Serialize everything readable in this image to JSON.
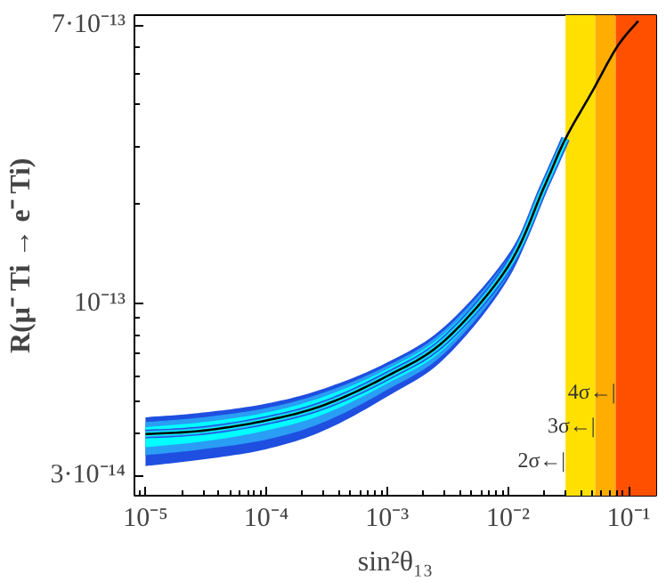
{
  "chart_data": {
    "type": "line",
    "xlabel": "sin²θ₁₃",
    "ylabel": "R(μ⁻ Ti → e⁻ Ti)",
    "log": "xy",
    "grid": false,
    "xlim": [
      8.1e-06,
      0.169
    ],
    "ylim": [
      2.6e-14,
      7.5e-13
    ],
    "xticks": [
      {
        "value": 1e-05,
        "label": "10⁻⁵"
      },
      {
        "value": 0.0001,
        "label": "10⁻⁴"
      },
      {
        "value": 0.001,
        "label": "10⁻³"
      },
      {
        "value": 0.01,
        "label": "10⁻²"
      },
      {
        "value": 0.1,
        "label": "10⁻¹"
      }
    ],
    "yticks": [
      {
        "value": 3e-14,
        "label": "3·10⁻¹⁴"
      },
      {
        "value": 1e-13,
        "label": "10⁻¹³"
      },
      {
        "value": 7e-13,
        "label": "7·10⁻¹³"
      }
    ],
    "series": [
      {
        "type": "line",
        "color": "#1f4fe0",
        "x": [
          1e-05,
          3e-05,
          0.0001,
          0.0003,
          0.001,
          0.003,
          0.01,
          0.02,
          0.03
        ],
        "values": [
          4e-14,
          4.1e-14,
          4.4e-14,
          4.9e-14,
          6e-14,
          7.7e-14,
          1.29e-13,
          2.26e-13,
          3.16e-13
        ],
        "lower": [
          3.2e-14,
          3.35e-14,
          3.6e-14,
          4.1e-14,
          5.2e-14,
          6.8e-14,
          1.18e-13,
          2.15e-13,
          3.1e-13
        ],
        "upper": [
          4.5e-14,
          4.65e-14,
          4.95e-14,
          5.5e-14,
          6.6e-14,
          8.5e-14,
          1.4e-13,
          2.35e-13,
          3.2e-13
        ]
      },
      {
        "type": "line",
        "color": "#2a9df4",
        "x": [
          1e-05,
          3e-05,
          0.0001,
          0.0003,
          0.001,
          0.003,
          0.01,
          0.02,
          0.03
        ],
        "values": [
          4e-14,
          4.1e-14,
          4.4e-14,
          4.9e-14,
          6e-14,
          7.7e-14,
          1.29e-13,
          2.26e-13,
          3.16e-13
        ],
        "lower": [
          3.45e-14,
          3.6e-14,
          3.85e-14,
          4.35e-14,
          5.45e-14,
          7.05e-14,
          1.21e-13,
          2.18e-13,
          3.12e-13
        ],
        "upper": [
          4.35e-14,
          4.5e-14,
          4.8e-14,
          5.35e-14,
          6.45e-14,
          8.3e-14,
          1.37e-13,
          2.33e-13,
          3.19e-13
        ]
      },
      {
        "type": "line",
        "color": "#00ffff",
        "x": [
          1e-05,
          3e-05,
          0.0001,
          0.0003,
          0.001,
          0.003,
          0.01,
          0.02,
          0.03
        ],
        "values": [
          4e-14,
          4.1e-14,
          4.4e-14,
          4.9e-14,
          6e-14,
          7.7e-14,
          1.29e-13,
          2.26e-13,
          3.16e-13
        ],
        "lower": [
          3.65e-14,
          3.8e-14,
          4.1e-14,
          4.6e-14,
          5.7e-14,
          7.3e-14,
          1.24e-13,
          2.21e-13,
          3.14e-13
        ],
        "upper": [
          4.2e-14,
          4.35e-14,
          4.65e-14,
          5.2e-14,
          6.3e-14,
          8.1e-14,
          1.34e-13,
          2.31e-13,
          3.18e-13
        ]
      },
      {
        "color": "#000000",
        "x": [
          1e-05,
          3e-05,
          0.0001,
          0.0003,
          0.001,
          0.003,
          0.01,
          0.02,
          0.03,
          0.05,
          0.08,
          0.12
        ],
        "values": [
          4e-14,
          4.1e-14,
          4.4e-14,
          4.9e-14,
          6e-14,
          7.7e-14,
          1.29e-13,
          2.26e-13,
          3.16e-13,
          4.4e-13,
          6e-13,
          7.2e-13
        ]
      }
    ],
    "bands": [
      {
        "axis": "x",
        "from": 0.03,
        "to": 0.053,
        "color": "#ffe000"
      },
      {
        "axis": "x",
        "from": 0.053,
        "to": 0.078,
        "color": "#ffad00"
      },
      {
        "axis": "x",
        "from": 0.078,
        "to": 0.169,
        "color": "#ff5000"
      }
    ],
    "annotations": [
      {
        "text": "2σ←|",
        "x": 0.03,
        "y": 3.33e-14
      },
      {
        "text": "3σ←|",
        "x": 0.053,
        "y": 4.25e-14
      },
      {
        "text": "4σ←|",
        "x": 0.078,
        "y": 5.4e-14
      }
    ]
  }
}
